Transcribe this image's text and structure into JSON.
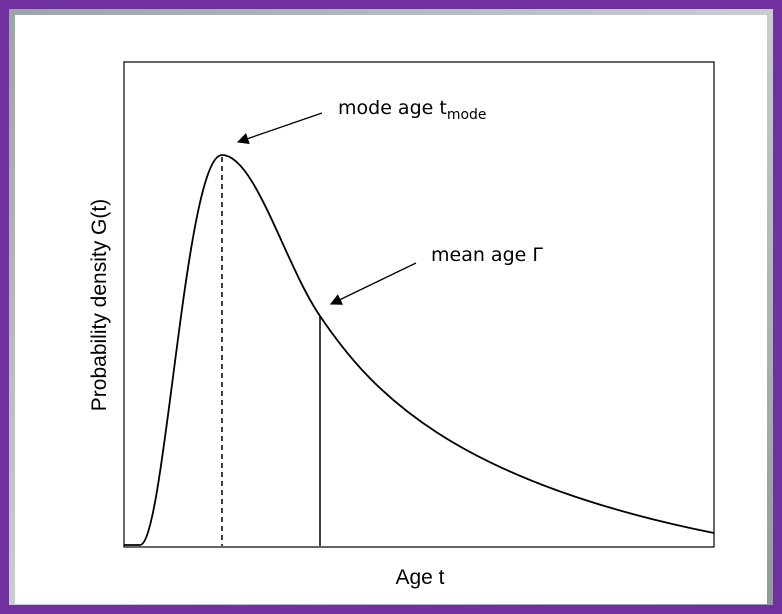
{
  "annotations": [
    {
      "text": "mode age t",
      "subscript": "mode"
    },
    {
      "text": "mean age Γ"
    }
  ],
  "y_label": "Probability density G(t)",
  "x_label": "Age t"
}
